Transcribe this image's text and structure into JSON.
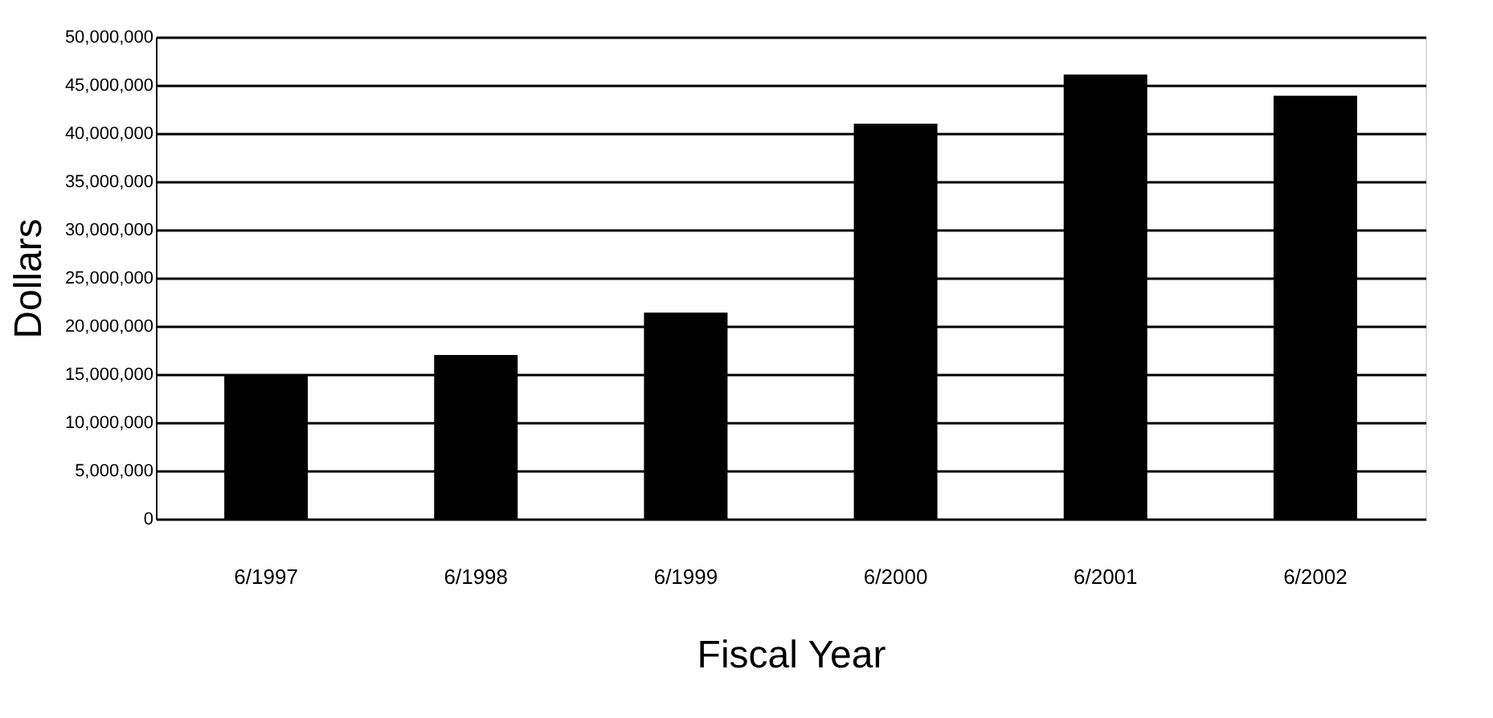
{
  "chart_data": {
    "type": "bar",
    "xlabel": "Fiscal Year",
    "ylabel": "Dollars",
    "categories": [
      "6/1997",
      "6/1998",
      "6/1999",
      "6/2000",
      "6/2001",
      "6/2002"
    ],
    "values": [
      15000000,
      17000000,
      21400000,
      41000000,
      46100000,
      43900000
    ],
    "color": "#000000",
    "ylim": [
      0,
      50000000
    ],
    "yticks": [
      {
        "value": 0,
        "label": "0"
      },
      {
        "value": 5000000,
        "label": "5,000,000"
      },
      {
        "value": 10000000,
        "label": "10,000,000"
      },
      {
        "value": 15000000,
        "label": "15,000,000"
      },
      {
        "value": 20000000,
        "label": "20,000,000"
      },
      {
        "value": 25000000,
        "label": "25,000,000"
      },
      {
        "value": 30000000,
        "label": "30,000,000"
      },
      {
        "value": 35000000,
        "label": "35,000,000"
      },
      {
        "value": 40000000,
        "label": "40,000,000"
      },
      {
        "value": 45000000,
        "label": "45,000,000"
      },
      {
        "value": 50000000,
        "label": "50,000,000"
      }
    ],
    "grid": "y"
  }
}
